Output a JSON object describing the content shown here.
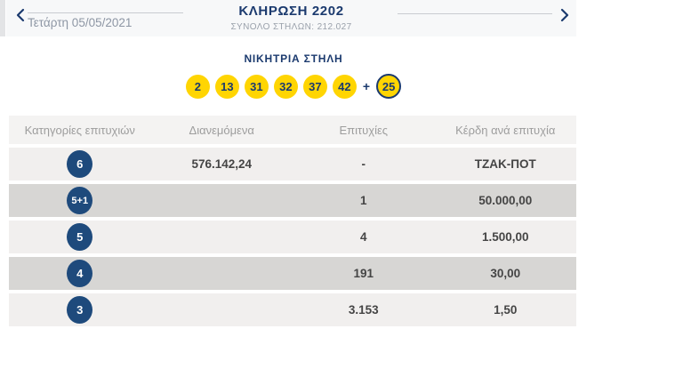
{
  "nav": {
    "prev_icon": "chevron-left",
    "next_icon": "chevron-right",
    "date": "Τετάρτη 05/05/2021",
    "draw_title": "ΚΛΗΡΩΣΗ 2202",
    "total_columns_label": "ΣΥΝΟΛΟ ΣΤΗΛΩΝ: 212.027"
  },
  "winning_column": {
    "title": "ΝΙΚΗΤΡΙΑ ΣΤΗΛΗ",
    "numbers": [
      "2",
      "13",
      "31",
      "32",
      "37",
      "42"
    ],
    "plus": "+",
    "joker_number": "25"
  },
  "results_table": {
    "headers": [
      "Κατηγορίες επιτυχιών",
      "Διανεμόμενα",
      "Επιτυχίες",
      "Κέρδη ανά επιτυχία"
    ],
    "rows": [
      {
        "category": "6",
        "distributed": "576.142,24",
        "winners": "-",
        "prize": "ΤΖΑΚ-ΠΟΤ"
      },
      {
        "category": "5+1",
        "distributed": "",
        "winners": "1",
        "prize": "50.000,00"
      },
      {
        "category": "5",
        "distributed": "",
        "winners": "4",
        "prize": "1.500,00"
      },
      {
        "category": "4",
        "distributed": "",
        "winners": "191",
        "prize": "30,00"
      },
      {
        "category": "3",
        "distributed": "",
        "winners": "3.153",
        "prize": "1,50"
      }
    ]
  },
  "colors": {
    "navy": "#1b3a6e",
    "ball_yellow": "#ffd502",
    "circle_navy": "#1e4a7c",
    "row_light": "#f1efee",
    "row_dark": "#d7d6d4",
    "header_bg": "#f7f8f9",
    "muted_text": "#9d9d9d"
  }
}
